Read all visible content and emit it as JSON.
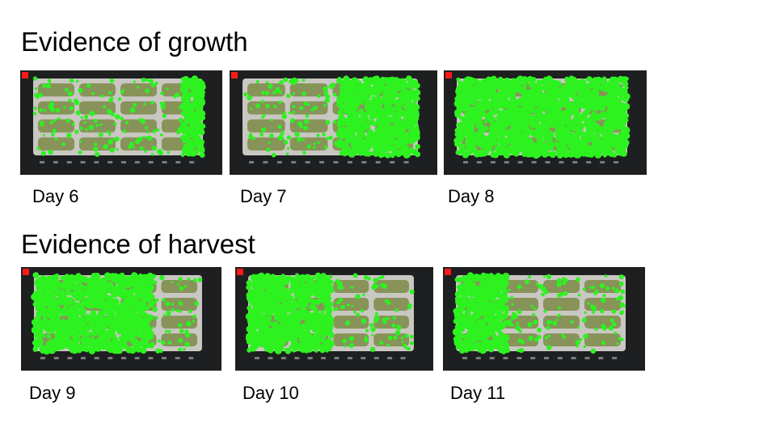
{
  "slide": {
    "sections": [
      {
        "title": "Evidence of growth",
        "panels": [
          {
            "caption": "Day 6",
            "canopy": {
              "fill": 0.12,
              "from": "right"
            }
          },
          {
            "caption": "Day 7",
            "canopy": {
              "fill": 0.45,
              "from": "right"
            }
          },
          {
            "caption": "Day 8",
            "canopy": {
              "fill": 1.0,
              "from": "all"
            }
          }
        ]
      },
      {
        "title": "Evidence of harvest",
        "panels": [
          {
            "caption": "Day 9",
            "canopy": {
              "fill": 0.7,
              "from": "left"
            }
          },
          {
            "caption": "Day 10",
            "canopy": {
              "fill": 0.5,
              "from": "left"
            }
          },
          {
            "caption": "Day 11",
            "canopy": {
              "fill": 0.3,
              "from": "left"
            }
          }
        ]
      }
    ]
  },
  "colors": {
    "canopy_green": "#2df21f",
    "tray_frame": "#1e1f20",
    "tray_bed": "#c9c7c2",
    "seedling": "#7c8a48",
    "marker": "#ff1a1a"
  }
}
